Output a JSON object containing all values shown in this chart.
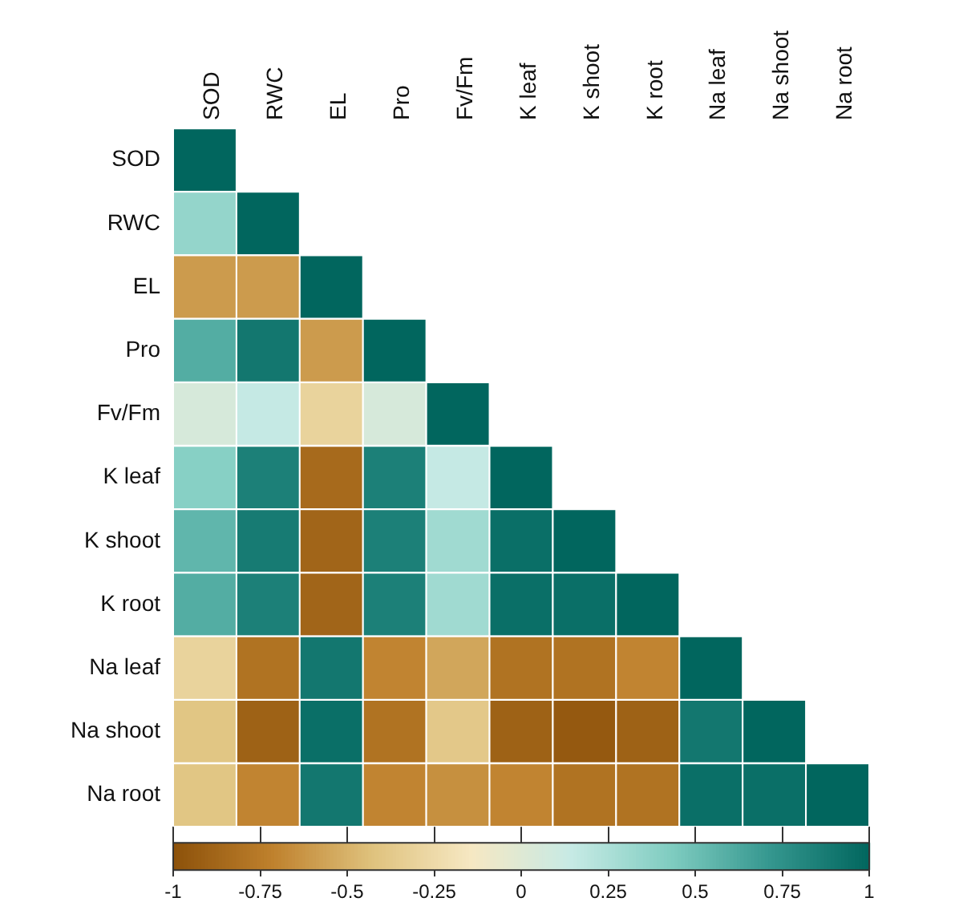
{
  "chart_data": {
    "type": "heatmap",
    "categories": [
      "SOD",
      "RWC",
      "EL",
      "Pro",
      "Fv/Fm",
      "K leaf",
      "K shoot",
      "K root",
      "Na leaf",
      "Na shoot",
      "Na root"
    ],
    "y_categories": [
      "SOD",
      "RWC",
      "EL",
      "Pro",
      "Fv/Fm",
      "K leaf",
      "K shoot",
      "K root",
      "Na leaf",
      "Na shoot",
      "Na root"
    ],
    "cells": [
      [
        1,
        null,
        null,
        null,
        null,
        null,
        null,
        null,
        null,
        null,
        null
      ],
      [
        0.35,
        1,
        null,
        null,
        null,
        null,
        null,
        null,
        null,
        null,
        null
      ],
      [
        -0.6,
        -0.6,
        1,
        null,
        null,
        null,
        null,
        null,
        null,
        null,
        null
      ],
      [
        0.6,
        0.9,
        -0.6,
        1,
        null,
        null,
        null,
        null,
        null,
        null,
        null
      ],
      [
        0.05,
        0.15,
        -0.3,
        0.05,
        1,
        null,
        null,
        null,
        null,
        null,
        null
      ],
      [
        0.4,
        0.85,
        -0.85,
        0.85,
        0.15,
        1,
        null,
        null,
        null,
        null,
        null
      ],
      [
        0.55,
        0.88,
        -0.88,
        0.85,
        0.3,
        0.95,
        1,
        null,
        null,
        null,
        null
      ],
      [
        0.6,
        0.85,
        -0.88,
        0.85,
        0.3,
        0.95,
        0.95,
        1,
        null,
        null,
        null
      ],
      [
        -0.3,
        -0.8,
        0.9,
        -0.7,
        -0.55,
        -0.8,
        -0.8,
        -0.7,
        1,
        null,
        null
      ],
      [
        -0.4,
        -0.9,
        0.95,
        -0.8,
        -0.38,
        -0.9,
        -0.95,
        -0.9,
        0.9,
        1,
        null
      ],
      [
        -0.4,
        -0.7,
        0.9,
        -0.7,
        -0.65,
        -0.7,
        -0.8,
        -0.8,
        0.95,
        0.95,
        1
      ]
    ],
    "clim": [
      -1,
      1
    ],
    "cticks": [
      {
        "value": -1,
        "label": "-1"
      },
      {
        "value": -0.75,
        "label": "-0.75"
      },
      {
        "value": -0.5,
        "label": "-0.5"
      },
      {
        "value": -0.25,
        "label": "-0.25"
      },
      {
        "value": 0,
        "label": "0"
      },
      {
        "value": 0.25,
        "label": "0.25"
      },
      {
        "value": 0.5,
        "label": "0.5"
      },
      {
        "value": 0.75,
        "label": "0.75"
      },
      {
        "value": 1,
        "label": "1"
      }
    ]
  }
}
